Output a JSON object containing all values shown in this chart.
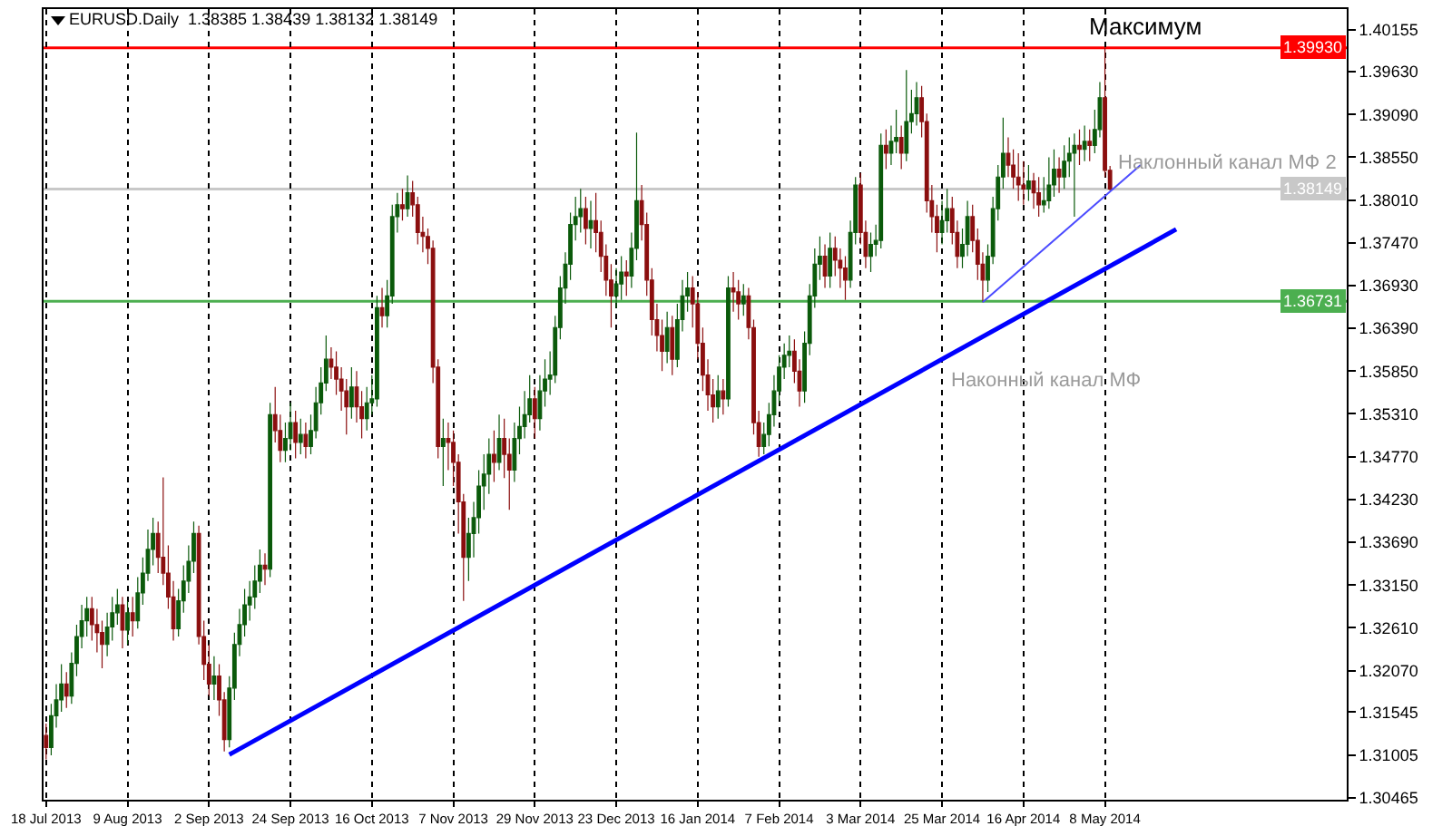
{
  "chart_data": {
    "type": "candlestick",
    "title": "EURUSD.Daily  1.38385 1.38439 1.38132 1.38149",
    "categories": [
      "18 Jul 2013",
      null,
      null,
      null,
      null,
      null,
      null,
      null,
      null,
      null,
      null,
      null,
      null,
      null,
      null,
      null,
      "9 Aug 2013",
      null,
      null,
      null,
      null,
      null,
      null,
      null,
      null,
      null,
      null,
      null,
      null,
      null,
      null,
      null,
      "2 Sep 2013",
      null,
      null,
      null,
      null,
      null,
      null,
      null,
      null,
      null,
      null,
      null,
      null,
      null,
      null,
      null,
      "24 Sep 2013",
      null,
      null,
      null,
      null,
      null,
      null,
      null,
      null,
      null,
      null,
      null,
      null,
      null,
      null,
      null,
      "16 Oct 2013",
      null,
      null,
      null,
      null,
      null,
      null,
      null,
      null,
      null,
      null,
      null,
      null,
      null,
      null,
      null,
      "7 Nov 2013",
      null,
      null,
      null,
      null,
      null,
      null,
      null,
      null,
      null,
      null,
      null,
      null,
      null,
      null,
      null,
      "29 Nov 2013",
      null,
      null,
      null,
      null,
      null,
      null,
      null,
      null,
      null,
      null,
      null,
      null,
      null,
      null,
      null,
      "23 Dec 2013",
      null,
      null,
      null,
      null,
      null,
      null,
      null,
      null,
      null,
      null,
      null,
      null,
      null,
      null,
      null,
      "16 Jan 2014",
      null,
      null,
      null,
      null,
      null,
      null,
      null,
      null,
      null,
      null,
      null,
      null,
      null,
      null,
      null,
      "7 Feb 2014",
      null,
      null,
      null,
      null,
      null,
      null,
      null,
      null,
      null,
      null,
      null,
      null,
      null,
      null,
      null,
      "3 Mar 2014",
      null,
      null,
      null,
      null,
      null,
      null,
      null,
      null,
      null,
      null,
      null,
      null,
      null,
      null,
      null,
      "25 Mar 2014",
      null,
      null,
      null,
      null,
      null,
      null,
      null,
      null,
      null,
      null,
      null,
      null,
      null,
      null,
      null,
      "16 Apr 2014",
      null,
      null,
      null,
      null,
      null,
      null,
      null,
      null,
      null,
      null,
      null,
      null,
      null,
      null,
      null,
      "8 May 2014",
      null,
      null,
      null,
      null,
      null,
      null,
      null,
      null,
      null,
      null,
      null,
      null,
      null,
      null,
      null,
      null,
      null,
      null,
      null,
      null,
      null,
      null,
      null,
      null,
      null,
      null,
      null,
      null,
      null,
      null,
      null,
      null,
      null,
      null,
      null,
      null,
      null,
      null,
      null,
      null,
      null,
      null,
      null,
      null,
      null,
      null,
      null
    ],
    "ohlc": [
      [
        1.3125,
        1.314,
        1.3095,
        1.311
      ],
      [
        1.311,
        1.3165,
        1.31,
        1.315
      ],
      [
        1.315,
        1.319,
        1.3135,
        1.317
      ],
      [
        1.317,
        1.3215,
        1.3155,
        1.319
      ],
      [
        1.319,
        1.3205,
        1.316,
        1.3175
      ],
      [
        1.3175,
        1.323,
        1.3165,
        1.3216
      ],
      [
        1.3216,
        1.3265,
        1.32,
        1.325
      ],
      [
        1.325,
        1.329,
        1.3235,
        1.327
      ],
      [
        1.327,
        1.33,
        1.325,
        1.3285
      ],
      [
        1.3285,
        1.33,
        1.3245,
        1.3265
      ],
      [
        1.3265,
        1.3285,
        1.323,
        1.3255
      ],
      [
        1.3255,
        1.327,
        1.321,
        1.324
      ],
      [
        1.324,
        1.328,
        1.3225,
        1.3262
      ],
      [
        1.3262,
        1.33,
        1.3245,
        1.328
      ],
      [
        1.328,
        1.331,
        1.3265,
        1.329
      ],
      [
        1.329,
        1.33,
        1.3235,
        1.3258
      ],
      [
        1.3258,
        1.3295,
        1.324,
        1.328
      ],
      [
        1.328,
        1.33,
        1.325,
        1.327
      ],
      [
        1.327,
        1.3325,
        1.326,
        1.3305
      ],
      [
        1.3305,
        1.335,
        1.329,
        1.333
      ],
      [
        1.333,
        1.3385,
        1.332,
        1.336
      ],
      [
        1.336,
        1.34,
        1.334,
        1.338
      ],
      [
        1.338,
        1.3395,
        1.333,
        1.335
      ],
      [
        1.335,
        1.3451,
        1.3315,
        1.333
      ],
      [
        1.333,
        1.3365,
        1.3285,
        1.33
      ],
      [
        1.33,
        1.332,
        1.3245,
        1.326
      ],
      [
        1.326,
        1.331,
        1.325,
        1.3295
      ],
      [
        1.3295,
        1.334,
        1.328,
        1.332
      ],
      [
        1.332,
        1.3365,
        1.3305,
        1.3345
      ],
      [
        1.3345,
        1.3395,
        1.333,
        1.338
      ],
      [
        1.338,
        1.339,
        1.324,
        1.325
      ],
      [
        1.325,
        1.327,
        1.3195,
        1.3215
      ],
      [
        1.3215,
        1.324,
        1.3175,
        1.319
      ],
      [
        1.319,
        1.3225,
        1.317,
        1.32
      ],
      [
        1.32,
        1.3215,
        1.315,
        1.317
      ],
      [
        1.317,
        1.318,
        1.3105,
        1.312
      ],
      [
        1.312,
        1.32,
        1.311,
        1.3185
      ],
      [
        1.3185,
        1.3255,
        1.317,
        1.324
      ],
      [
        1.324,
        1.3285,
        1.3225,
        1.3265
      ],
      [
        1.3265,
        1.331,
        1.325,
        1.329
      ],
      [
        1.329,
        1.332,
        1.327,
        1.33
      ],
      [
        1.33,
        1.334,
        1.3285,
        1.332
      ],
      [
        1.332,
        1.336,
        1.3305,
        1.334
      ],
      [
        1.334,
        1.3355,
        1.3315,
        1.3335
      ],
      [
        1.3335,
        1.3545,
        1.3325,
        1.353
      ],
      [
        1.353,
        1.3565,
        1.3495,
        1.351
      ],
      [
        1.351,
        1.353,
        1.347,
        1.3485
      ],
      [
        1.3485,
        1.352,
        1.347,
        1.35
      ],
      [
        1.35,
        1.3545,
        1.3485,
        1.352
      ],
      [
        1.352,
        1.3535,
        1.3475,
        1.3495
      ],
      [
        1.3495,
        1.3525,
        1.348,
        1.3505
      ],
      [
        1.3505,
        1.352,
        1.3475,
        1.349
      ],
      [
        1.349,
        1.353,
        1.348,
        1.351
      ],
      [
        1.351,
        1.3565,
        1.35,
        1.3545
      ],
      [
        1.3545,
        1.359,
        1.353,
        1.357
      ],
      [
        1.357,
        1.363,
        1.356,
        1.36
      ],
      [
        1.36,
        1.3615,
        1.3575,
        1.359
      ],
      [
        1.359,
        1.361,
        1.3555,
        1.3575
      ],
      [
        1.3575,
        1.359,
        1.3535,
        1.356
      ],
      [
        1.356,
        1.3575,
        1.3505,
        1.354
      ],
      [
        1.354,
        1.359,
        1.3525,
        1.3565
      ],
      [
        1.3565,
        1.3585,
        1.352,
        1.354
      ],
      [
        1.354,
        1.356,
        1.35,
        1.3525
      ],
      [
        1.3525,
        1.3565,
        1.351,
        1.3545
      ],
      [
        1.3545,
        1.358,
        1.353,
        1.355
      ],
      [
        1.355,
        1.368,
        1.354,
        1.3665
      ],
      [
        1.3665,
        1.369,
        1.364,
        1.3655
      ],
      [
        1.3655,
        1.37,
        1.364,
        1.368
      ],
      [
        1.368,
        1.3795,
        1.367,
        1.378
      ],
      [
        1.378,
        1.381,
        1.376,
        1.3795
      ],
      [
        1.3795,
        1.3815,
        1.3775,
        1.379
      ],
      [
        1.379,
        1.3832,
        1.378,
        1.381
      ],
      [
        1.381,
        1.3825,
        1.378,
        1.3795
      ],
      [
        1.3795,
        1.3805,
        1.3745,
        1.376
      ],
      [
        1.376,
        1.378,
        1.3735,
        1.3755
      ],
      [
        1.3755,
        1.3765,
        1.372,
        1.374
      ],
      [
        1.374,
        1.375,
        1.357,
        1.359
      ],
      [
        1.359,
        1.36,
        1.3475,
        1.349
      ],
      [
        1.349,
        1.3525,
        1.344,
        1.35
      ],
      [
        1.35,
        1.352,
        1.346,
        1.3495
      ],
      [
        1.3495,
        1.351,
        1.344,
        1.347
      ],
      [
        1.347,
        1.348,
        1.338,
        1.342
      ],
      [
        1.342,
        1.343,
        1.3295,
        1.335
      ],
      [
        1.335,
        1.34,
        1.332,
        1.338
      ],
      [
        1.338,
        1.342,
        1.335,
        1.34
      ],
      [
        1.34,
        1.346,
        1.338,
        1.344
      ],
      [
        1.344,
        1.348,
        1.341,
        1.3455
      ],
      [
        1.3455,
        1.35,
        1.343,
        1.348
      ],
      [
        1.348,
        1.351,
        1.3445,
        1.347
      ],
      [
        1.347,
        1.353,
        1.346,
        1.35
      ],
      [
        1.35,
        1.3525,
        1.345,
        1.348
      ],
      [
        1.348,
        1.35,
        1.341,
        1.346
      ],
      [
        1.346,
        1.352,
        1.3445,
        1.35
      ],
      [
        1.35,
        1.354,
        1.348,
        1.3515
      ],
      [
        1.3515,
        1.356,
        1.35,
        1.353
      ],
      [
        1.353,
        1.358,
        1.352,
        1.355
      ],
      [
        1.355,
        1.3565,
        1.35,
        1.3525
      ],
      [
        1.3525,
        1.358,
        1.351,
        1.356
      ],
      [
        1.356,
        1.36,
        1.354,
        1.3575
      ],
      [
        1.3575,
        1.361,
        1.3555,
        1.358
      ],
      [
        1.358,
        1.3655,
        1.357,
        1.364
      ],
      [
        1.364,
        1.3705,
        1.3625,
        1.369
      ],
      [
        1.369,
        1.3735,
        1.367,
        1.372
      ],
      [
        1.372,
        1.3785,
        1.37,
        1.377
      ],
      [
        1.377,
        1.3805,
        1.375,
        1.378
      ],
      [
        1.378,
        1.3815,
        1.376,
        1.379
      ],
      [
        1.379,
        1.3805,
        1.3745,
        1.3765
      ],
      [
        1.3765,
        1.38,
        1.374,
        1.3775
      ],
      [
        1.3775,
        1.381,
        1.3735,
        1.376
      ],
      [
        1.376,
        1.3775,
        1.371,
        1.373
      ],
      [
        1.373,
        1.3745,
        1.368,
        1.37
      ],
      [
        1.37,
        1.372,
        1.364,
        1.368
      ],
      [
        1.368,
        1.3715,
        1.3665,
        1.3695
      ],
      [
        1.3695,
        1.373,
        1.3675,
        1.371
      ],
      [
        1.371,
        1.3725,
        1.368,
        1.3705
      ],
      [
        1.3705,
        1.376,
        1.369,
        1.374
      ],
      [
        1.374,
        1.3886,
        1.3725,
        1.38
      ],
      [
        1.38,
        1.382,
        1.375,
        1.377
      ],
      [
        1.377,
        1.3785,
        1.368,
        1.37
      ],
      [
        1.37,
        1.3715,
        1.363,
        1.365
      ],
      [
        1.365,
        1.367,
        1.361,
        1.363
      ],
      [
        1.363,
        1.365,
        1.3585,
        1.361
      ],
      [
        1.361,
        1.366,
        1.3595,
        1.364
      ],
      [
        1.364,
        1.3655,
        1.358,
        1.36
      ],
      [
        1.36,
        1.367,
        1.359,
        1.365
      ],
      [
        1.365,
        1.37,
        1.3635,
        1.368
      ],
      [
        1.368,
        1.371,
        1.366,
        1.369
      ],
      [
        1.369,
        1.3705,
        1.364,
        1.367
      ],
      [
        1.367,
        1.3685,
        1.36,
        1.362
      ],
      [
        1.362,
        1.364,
        1.356,
        1.358
      ],
      [
        1.358,
        1.36,
        1.3535,
        1.3555
      ],
      [
        1.3555,
        1.3575,
        1.352,
        1.354
      ],
      [
        1.354,
        1.358,
        1.3525,
        1.356
      ],
      [
        1.356,
        1.3575,
        1.353,
        1.355
      ],
      [
        1.355,
        1.3705,
        1.354,
        1.369
      ],
      [
        1.369,
        1.371,
        1.366,
        1.3685
      ],
      [
        1.3685,
        1.37,
        1.365,
        1.367
      ],
      [
        1.367,
        1.3695,
        1.3655,
        1.368
      ],
      [
        1.368,
        1.369,
        1.3625,
        1.364
      ],
      [
        1.364,
        1.365,
        1.3505,
        1.352
      ],
      [
        1.352,
        1.3535,
        1.3477,
        1.349
      ],
      [
        1.349,
        1.352,
        1.348,
        1.3505
      ],
      [
        1.3505,
        1.3545,
        1.349,
        1.353
      ],
      [
        1.353,
        1.358,
        1.3515,
        1.356
      ],
      [
        1.356,
        1.3605,
        1.3545,
        1.359
      ],
      [
        1.359,
        1.362,
        1.3575,
        1.3605
      ],
      [
        1.3605,
        1.363,
        1.359,
        1.361
      ],
      [
        1.361,
        1.3625,
        1.357,
        1.3585
      ],
      [
        1.3585,
        1.36,
        1.354,
        1.356
      ],
      [
        1.356,
        1.3635,
        1.3545,
        1.362
      ],
      [
        1.362,
        1.3695,
        1.3605,
        1.368
      ],
      [
        1.368,
        1.374,
        1.3665,
        1.372
      ],
      [
        1.372,
        1.3755,
        1.37,
        1.373
      ],
      [
        1.373,
        1.3745,
        1.369,
        1.3705
      ],
      [
        1.3705,
        1.376,
        1.369,
        1.374
      ],
      [
        1.374,
        1.3755,
        1.3705,
        1.3725
      ],
      [
        1.3725,
        1.374,
        1.369,
        1.3715
      ],
      [
        1.3715,
        1.373,
        1.3675,
        1.37
      ],
      [
        1.37,
        1.3775,
        1.369,
        1.376
      ],
      [
        1.376,
        1.383,
        1.3745,
        1.382
      ],
      [
        1.382,
        1.3835,
        1.3745,
        1.376
      ],
      [
        1.376,
        1.3775,
        1.3715,
        1.373
      ],
      [
        1.373,
        1.376,
        1.371,
        1.3745
      ],
      [
        1.3745,
        1.377,
        1.373,
        1.375
      ],
      [
        1.375,
        1.3885,
        1.374,
        1.387
      ],
      [
        1.387,
        1.389,
        1.384,
        1.386
      ],
      [
        1.386,
        1.3895,
        1.3845,
        1.3875
      ],
      [
        1.3875,
        1.3915,
        1.386,
        1.388
      ],
      [
        1.388,
        1.3895,
        1.384,
        1.386
      ],
      [
        1.386,
        1.3965,
        1.385,
        1.39
      ],
      [
        1.39,
        1.394,
        1.3885,
        1.391
      ],
      [
        1.391,
        1.395,
        1.3895,
        1.393
      ],
      [
        1.393,
        1.3945,
        1.388,
        1.39
      ],
      [
        1.39,
        1.391,
        1.3785,
        1.38
      ],
      [
        1.38,
        1.382,
        1.376,
        1.378
      ],
      [
        1.378,
        1.3795,
        1.3735,
        1.376
      ],
      [
        1.376,
        1.38,
        1.3745,
        1.3775
      ],
      [
        1.3775,
        1.3815,
        1.376,
        1.379
      ],
      [
        1.379,
        1.3805,
        1.3745,
        1.376
      ],
      [
        1.376,
        1.3775,
        1.3715,
        1.373
      ],
      [
        1.373,
        1.3765,
        1.3715,
        1.3745
      ],
      [
        1.3745,
        1.38,
        1.373,
        1.378
      ],
      [
        1.378,
        1.3795,
        1.3735,
        1.375
      ],
      [
        1.375,
        1.3765,
        1.37,
        1.372
      ],
      [
        1.372,
        1.3735,
        1.3672,
        1.37
      ],
      [
        1.37,
        1.3745,
        1.3685,
        1.373
      ],
      [
        1.373,
        1.3805,
        1.372,
        1.379
      ],
      [
        1.379,
        1.3845,
        1.3775,
        1.383
      ],
      [
        1.383,
        1.3905,
        1.3815,
        1.386
      ],
      [
        1.386,
        1.388,
        1.383,
        1.3845
      ],
      [
        1.3845,
        1.3865,
        1.3815,
        1.383
      ],
      [
        1.383,
        1.386,
        1.38,
        1.382
      ],
      [
        1.382,
        1.385,
        1.3795,
        1.3815
      ],
      [
        1.3815,
        1.3845,
        1.38,
        1.3825
      ],
      [
        1.3825,
        1.3835,
        1.379,
        1.381
      ],
      [
        1.381,
        1.383,
        1.378,
        1.3795
      ],
      [
        1.3795,
        1.383,
        1.3785,
        1.38
      ],
      [
        1.38,
        1.3855,
        1.379,
        1.382
      ],
      [
        1.382,
        1.3865,
        1.3805,
        1.384
      ],
      [
        1.384,
        1.3855,
        1.381,
        1.383
      ],
      [
        1.383,
        1.387,
        1.3815,
        1.385
      ],
      [
        1.385,
        1.388,
        1.383,
        1.386
      ],
      [
        1.386,
        1.3885,
        1.378,
        1.387
      ],
      [
        1.387,
        1.389,
        1.3845,
        1.3865
      ],
      [
        1.3865,
        1.3895,
        1.385,
        1.3875
      ],
      [
        1.3875,
        1.389,
        1.385,
        1.387
      ],
      [
        1.387,
        1.3915,
        1.386,
        1.389
      ],
      [
        1.389,
        1.395,
        1.388,
        1.393
      ],
      [
        1.393,
        1.3993,
        1.383,
        1.38385
      ],
      [
        1.38385,
        1.38439,
        1.38132,
        1.38149
      ],
      null,
      null,
      null,
      null,
      null,
      null,
      null,
      null,
      null,
      null,
      null,
      null,
      null,
      null,
      null,
      null,
      null,
      null,
      null,
      null,
      null,
      null,
      null,
      null,
      null,
      null,
      null,
      null,
      null,
      null,
      null,
      null,
      null,
      null,
      null,
      null,
      null,
      null,
      null,
      null,
      null,
      null,
      null,
      null,
      null,
      null
    ],
    "series": [
      {
        "type": "line",
        "color": "#0000ff",
        "values": [
          null,
          null,
          null,
          null,
          null,
          null,
          null,
          null,
          null,
          null,
          null,
          null,
          null,
          null,
          null,
          null,
          null,
          null,
          null,
          null,
          null,
          null,
          null,
          null,
          null,
          null,
          null,
          null,
          null,
          null,
          null,
          null,
          null,
          null,
          null,
          null,
          1.3101,
          null,
          null,
          null,
          null,
          null,
          null,
          null,
          null,
          null,
          null,
          null,
          null,
          null,
          null,
          null,
          null,
          null,
          null,
          null,
          null,
          null,
          null,
          null,
          null,
          null,
          null,
          null,
          null,
          null,
          null,
          null,
          null,
          null,
          null,
          null,
          null,
          null,
          null,
          null,
          null,
          null,
          null,
          null,
          null,
          null,
          null,
          null,
          null,
          null,
          null,
          null,
          null,
          null,
          null,
          null,
          null,
          null,
          null,
          null,
          null,
          null,
          null,
          null,
          null,
          null,
          null,
          null,
          null,
          null,
          null,
          null,
          null,
          null,
          null,
          null,
          null,
          null,
          null,
          null,
          null,
          null,
          null,
          null,
          null,
          null,
          null,
          null,
          null,
          null,
          null,
          null,
          null,
          null,
          null,
          null,
          null,
          null,
          null,
          null,
          null,
          null,
          null,
          null,
          null,
          null,
          null,
          null,
          null,
          null,
          null,
          null,
          null,
          null,
          null,
          null,
          null,
          null,
          null,
          null,
          null,
          null,
          null,
          null,
          null,
          null,
          null,
          null,
          null,
          null,
          null,
          null,
          null,
          null,
          null,
          null,
          null,
          null,
          null,
          null,
          null,
          null,
          null,
          null,
          null,
          null,
          null,
          null,
          null,
          null,
          null,
          null,
          null,
          null,
          null,
          null,
          null,
          null,
          null,
          null,
          null,
          null,
          null,
          null,
          null,
          null,
          null,
          null,
          null,
          null,
          null,
          null,
          null,
          null,
          null,
          null,
          null,
          null,
          null,
          null,
          null,
          null,
          null,
          null,
          null,
          null,
          1.3764,
          null,
          null,
          null,
          null,
          null,
          null,
          null,
          null,
          null,
          null,
          null,
          null,
          null,
          null,
          null,
          null,
          null,
          null,
          null,
          null,
          null,
          null,
          null,
          null,
          null,
          null,
          null,
          null,
          null,
          null,
          null,
          null,
          null
        ]
      },
      {
        "type": "line",
        "color": "#4b4bff",
        "values": [
          null,
          null,
          null,
          null,
          null,
          null,
          null,
          null,
          null,
          null,
          null,
          null,
          null,
          null,
          null,
          null,
          null,
          null,
          null,
          null,
          null,
          null,
          null,
          null,
          null,
          null,
          null,
          null,
          null,
          null,
          null,
          null,
          null,
          null,
          null,
          null,
          null,
          null,
          null,
          null,
          null,
          null,
          null,
          null,
          null,
          null,
          null,
          null,
          null,
          null,
          null,
          null,
          null,
          null,
          null,
          null,
          null,
          null,
          null,
          null,
          null,
          null,
          null,
          null,
          null,
          null,
          null,
          null,
          null,
          null,
          null,
          null,
          null,
          null,
          null,
          null,
          null,
          null,
          null,
          null,
          null,
          null,
          null,
          null,
          null,
          null,
          null,
          null,
          null,
          null,
          null,
          null,
          null,
          null,
          null,
          null,
          null,
          null,
          null,
          null,
          null,
          null,
          null,
          null,
          null,
          null,
          null,
          null,
          null,
          null,
          null,
          null,
          null,
          null,
          null,
          null,
          null,
          null,
          null,
          null,
          null,
          null,
          null,
          null,
          null,
          null,
          null,
          null,
          null,
          null,
          null,
          null,
          null,
          null,
          null,
          null,
          null,
          null,
          null,
          null,
          null,
          null,
          null,
          null,
          null,
          null,
          null,
          null,
          null,
          null,
          null,
          null,
          null,
          null,
          null,
          null,
          null,
          null,
          null,
          null,
          null,
          null,
          null,
          null,
          null,
          null,
          null,
          null,
          null,
          null,
          null,
          null,
          null,
          null,
          null,
          null,
          null,
          null,
          null,
          null,
          null,
          null,
          null,
          null,
          1.3672,
          null,
          null,
          null,
          null,
          null,
          null,
          null,
          null,
          null,
          null,
          null,
          null,
          null,
          null,
          null,
          null,
          null,
          null,
          null,
          null,
          null,
          null,
          null,
          null,
          null,
          null,
          null,
          null,
          null,
          null,
          1.3845,
          null,
          null,
          null,
          null,
          null,
          null,
          null,
          null,
          null,
          null,
          null,
          null,
          null,
          null,
          null,
          null,
          null,
          null,
          null,
          null,
          null,
          null,
          null,
          null,
          null,
          null,
          null,
          null,
          null,
          null,
          null,
          null,
          null,
          null,
          null,
          null,
          null,
          null,
          null,
          null
        ]
      }
    ],
    "ylim": [
      1.3044,
      1.4042
    ],
    "yticks": [
      1.40155,
      {
        "value": 1.3963,
        "label": "1.39630"
      },
      {
        "value": 1.3909,
        "label": "1.39090"
      },
      {
        "value": 1.3855,
        "label": "1.38550"
      },
      {
        "value": 1.3801,
        "label": "1.38010"
      },
      {
        "value": 1.3747,
        "label": "1.37470"
      },
      {
        "value": 1.3693,
        "label": "1.36930"
      },
      {
        "value": 1.3639,
        "label": "1.36390"
      },
      {
        "value": 1.3585,
        "label": "1.35850"
      },
      {
        "value": 1.3531,
        "label": "1.35310"
      },
      {
        "value": 1.3477,
        "label": "1.34770"
      },
      {
        "value": 1.3423,
        "label": "1.34230"
      },
      {
        "value": 1.3369,
        "label": "1.33690"
      },
      {
        "value": 1.3315,
        "label": "1.33150"
      },
      {
        "value": 1.3261,
        "label": "1.32610"
      },
      {
        "value": 1.3207,
        "label": "1.32070"
      },
      1.31545,
      1.31005,
      1.30465
    ],
    "ref_lines": [
      {
        "axis": "y",
        "value": 1.3993,
        "label": "1.39930",
        "color": "#ff0000"
      },
      {
        "axis": "y",
        "value": 1.38149,
        "label": "1.38149",
        "color": "#c8c8c8"
      },
      {
        "axis": "y",
        "value": 1.36731,
        "label": "1.36731",
        "color": "#4caf50"
      }
    ],
    "annotations": [
      "Максимум",
      "Наклонный канал МФ 2",
      "Наконный канал МФ"
    ],
    "grid": "x"
  }
}
